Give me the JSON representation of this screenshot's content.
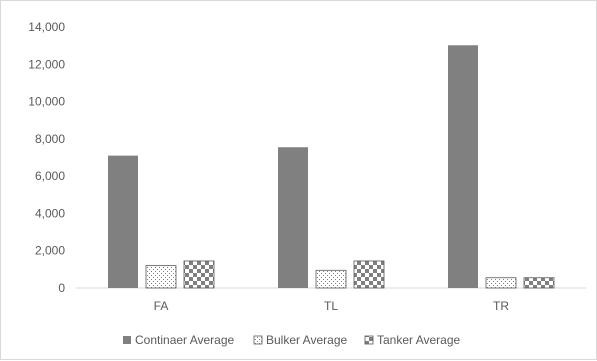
{
  "chart_data": {
    "type": "bar",
    "categories": [
      "FA",
      "TL",
      "TR"
    ],
    "series": [
      {
        "name": "Continaer Average",
        "values": [
          7100,
          7550,
          13020
        ],
        "pattern": "solid"
      },
      {
        "name": "Bulker Average",
        "values": [
          1200,
          950,
          550
        ],
        "pattern": "dots"
      },
      {
        "name": "Tanker Average",
        "values": [
          1450,
          1450,
          550
        ],
        "pattern": "checker"
      }
    ],
    "ylim": [
      0,
      14000
    ],
    "yticks": [
      0,
      2000,
      4000,
      6000,
      8000,
      10000,
      12000,
      14000
    ],
    "ytick_labels": [
      "0",
      "2,000",
      "4,000",
      "6,000",
      "8,000",
      "10,000",
      "12,000",
      "14,000"
    ],
    "grid": false,
    "legend_position": "bottom",
    "colors": {
      "bar": "#808080",
      "border": "#595959",
      "axis": "#d9d9d9",
      "text": "#595959"
    }
  }
}
